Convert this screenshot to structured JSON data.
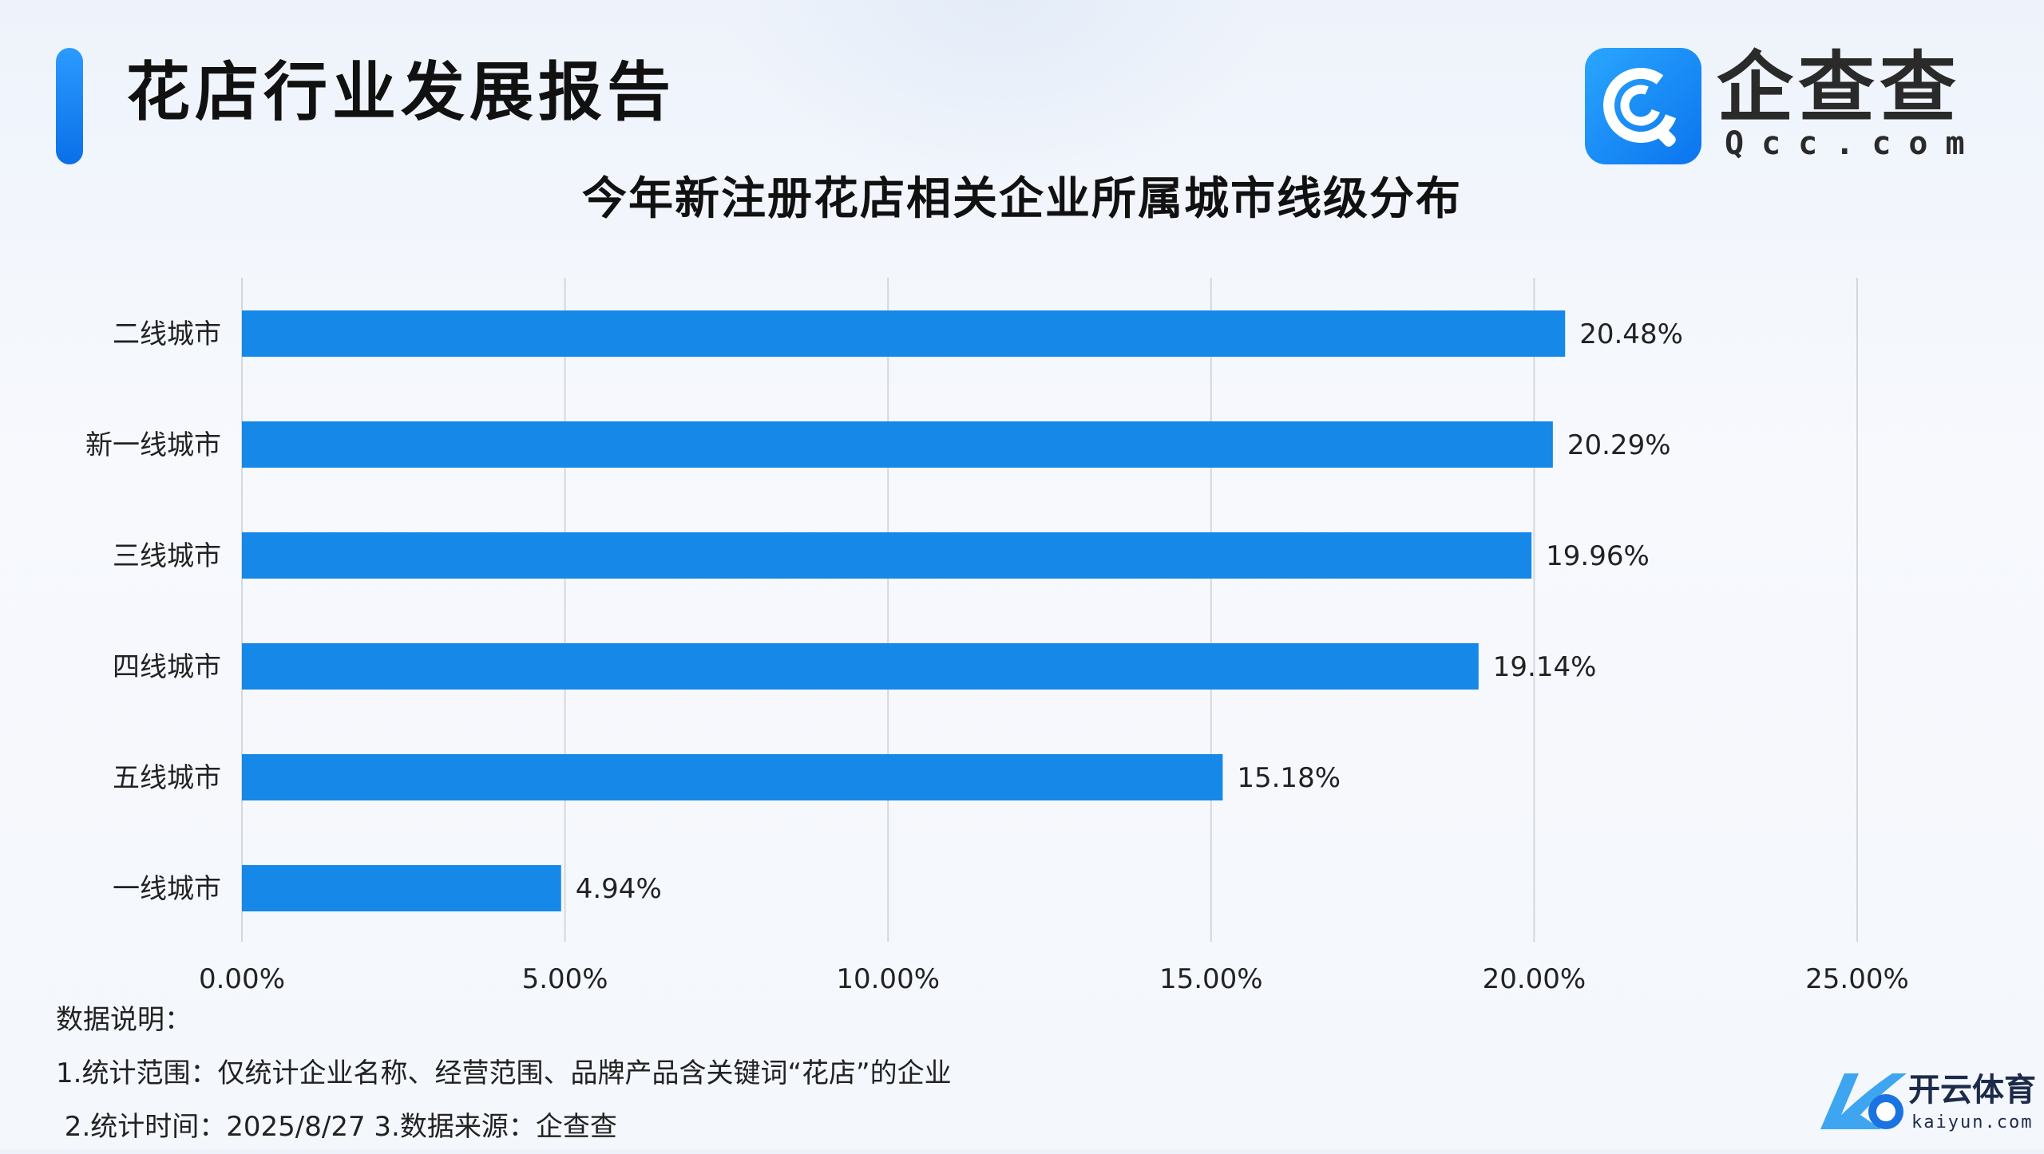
{
  "header": {
    "report_title": "花店行业发展报告",
    "logo_name": "企查查",
    "logo_sub": "Qcc.com"
  },
  "chart_data": {
    "type": "bar",
    "orientation": "horizontal",
    "title": "今年新注册花店相关企业所属城市线级分布",
    "categories": [
      "二线城市",
      "新一线城市",
      "三线城市",
      "四线城市",
      "五线城市",
      "一线城市"
    ],
    "values": [
      20.48,
      20.29,
      19.96,
      19.14,
      15.18,
      4.94
    ],
    "value_labels": [
      "20.48%",
      "20.29%",
      "19.96%",
      "19.14%",
      "15.18%",
      "4.94%"
    ],
    "xlim": [
      0,
      25
    ],
    "xticks": [
      0,
      5,
      10,
      15,
      20,
      25
    ],
    "xtick_labels": [
      "0.00%",
      "5.00%",
      "10.00%",
      "15.00%",
      "20.00%",
      "25.00%"
    ],
    "xlabel": "",
    "ylabel": "",
    "grid": "vertical",
    "legend": "none",
    "bar_color": "#1588e8"
  },
  "notes": {
    "heading": "数据说明：",
    "line1": "1.统计范围：仅统计企业名称、经营范围、品牌产品含关键词“花店”的企业",
    "line2": " 2.统计时间：2025/8/27 3.数据来源：企查查"
  },
  "watermark": {
    "name": "开云体育",
    "sub": "kaiyun.com"
  },
  "colors": {
    "accent": "#0a6fe8",
    "bar": "#1588e8",
    "grid": "#d4d8de"
  },
  "icons": {
    "logo": "qcc-logo-icon",
    "watermark": "kaiyun-logo-icon"
  }
}
